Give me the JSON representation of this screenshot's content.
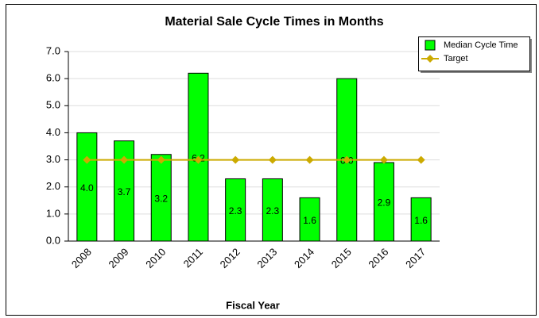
{
  "chart_data": {
    "type": "bar",
    "title": "Material Sale Cycle Times in Months",
    "xlabel": "Fiscal Year",
    "categories": [
      "2008",
      "2009",
      "2010",
      "2011",
      "2012",
      "2013",
      "2014",
      "2015",
      "2016",
      "2017"
    ],
    "series": [
      {
        "name": "Median Cycle Time",
        "type": "bar",
        "color": "#00ff00",
        "values": [
          4.0,
          3.7,
          3.2,
          6.2,
          2.3,
          2.3,
          1.6,
          6.0,
          2.9,
          1.6
        ],
        "value_labels": [
          "4.0",
          "3.7",
          "3.2",
          "6.2",
          "2.3",
          "2.3",
          "1.6",
          "6.0",
          "2.9",
          "1.6"
        ]
      },
      {
        "name": "Target",
        "type": "line",
        "color": "#ccaa00",
        "values": [
          3.0,
          3.0,
          3.0,
          3.0,
          3.0,
          3.0,
          3.0,
          3.0,
          3.0,
          3.0
        ]
      }
    ],
    "ylim": [
      0,
      7
    ],
    "yticks": [
      {
        "value": 0,
        "label": "0.0"
      },
      {
        "value": 1,
        "label": "1.0"
      },
      {
        "value": 2,
        "label": "2.0"
      },
      {
        "value": 3,
        "label": "3.0"
      },
      {
        "value": 4,
        "label": "4.0"
      },
      {
        "value": 5,
        "label": "5.0"
      },
      {
        "value": 6,
        "label": "6.0"
      },
      {
        "value": 7,
        "label": "7.0"
      }
    ],
    "grid": true,
    "legend": "top-right"
  }
}
